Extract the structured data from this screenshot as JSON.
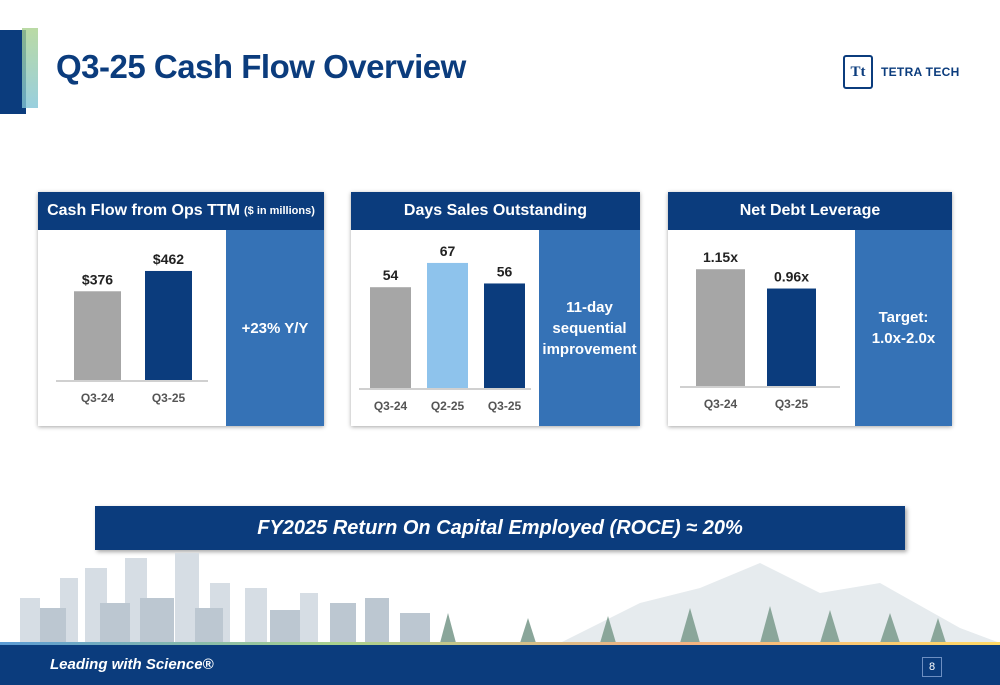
{
  "title": "Q3-25 Cash Flow Overview",
  "logo": {
    "mark": "Tt",
    "text": "TETRA TECH"
  },
  "panels": [
    {
      "title": "Cash Flow from Ops TTM",
      "subtitle": "($ in millions)",
      "side_text": "+23% Y/Y",
      "chart_data": {
        "type": "bar",
        "categories": [
          "Q3-24",
          "Q3-25"
        ],
        "values": [
          376,
          462
        ],
        "labels": [
          "$376",
          "$462"
        ],
        "colors": [
          "#a6a6a6",
          "#0b3c7d"
        ],
        "ylim": [
          0,
          500
        ]
      }
    },
    {
      "title": "Days Sales Outstanding",
      "subtitle": "",
      "side_text": "11-day sequential improvement",
      "chart_data": {
        "type": "bar",
        "categories": [
          "Q3-24",
          "Q2-25",
          "Q3-25"
        ],
        "values": [
          54,
          67,
          56
        ],
        "labels": [
          "54",
          "67",
          "56"
        ],
        "colors": [
          "#a6a6a6",
          "#8ec3ec",
          "#0b3c7d"
        ],
        "ylim": [
          0,
          75
        ]
      }
    },
    {
      "title": "Net Debt Leverage",
      "subtitle": "",
      "side_text": "Target: 1.0x-2.0x",
      "chart_data": {
        "type": "bar",
        "categories": [
          "Q3-24",
          "Q3-25"
        ],
        "values": [
          1.15,
          0.96
        ],
        "labels": [
          "1.15x",
          "0.96x"
        ],
        "colors": [
          "#a6a6a6",
          "#0b3c7d"
        ],
        "ylim": [
          0,
          1.3
        ]
      }
    }
  ],
  "roce": "FY2025 Return On Capital Employed (ROCE) ≈ 20%",
  "footer": {
    "tagline": "Leading with Science®",
    "page": "8"
  }
}
